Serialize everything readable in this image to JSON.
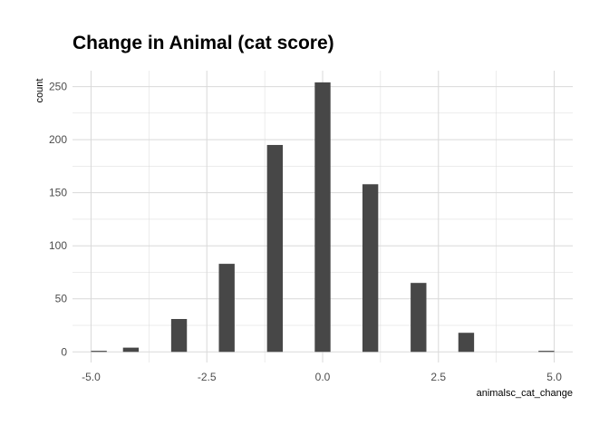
{
  "chart_data": {
    "type": "bar",
    "title": "Change in Animal (cat score)",
    "xlabel": "animalsc_cat_change",
    "ylabel": "count",
    "xlim": [
      -5.4,
      5.4
    ],
    "ylim": [
      -10,
      265
    ],
    "x_ticks": [
      -5.0,
      -2.5,
      0.0,
      2.5,
      5.0
    ],
    "x_tick_labels": [
      "-5.0",
      "-2.5",
      "0.0",
      "2.5",
      "5.0"
    ],
    "y_ticks": [
      0,
      50,
      100,
      150,
      200,
      250
    ],
    "y_tick_labels": [
      "0",
      "50",
      "100",
      "150",
      "200",
      "250"
    ],
    "bin_width": 0.34,
    "x": [
      -4.83,
      -4.14,
      -3.1,
      -2.07,
      -1.03,
      0.0,
      1.03,
      2.07,
      3.1,
      4.83
    ],
    "values": [
      1,
      4,
      31,
      83,
      195,
      254,
      158,
      65,
      18,
      1
    ],
    "grid": true,
    "bar_color": "#474747",
    "grid_color": "#d9d9d9"
  }
}
